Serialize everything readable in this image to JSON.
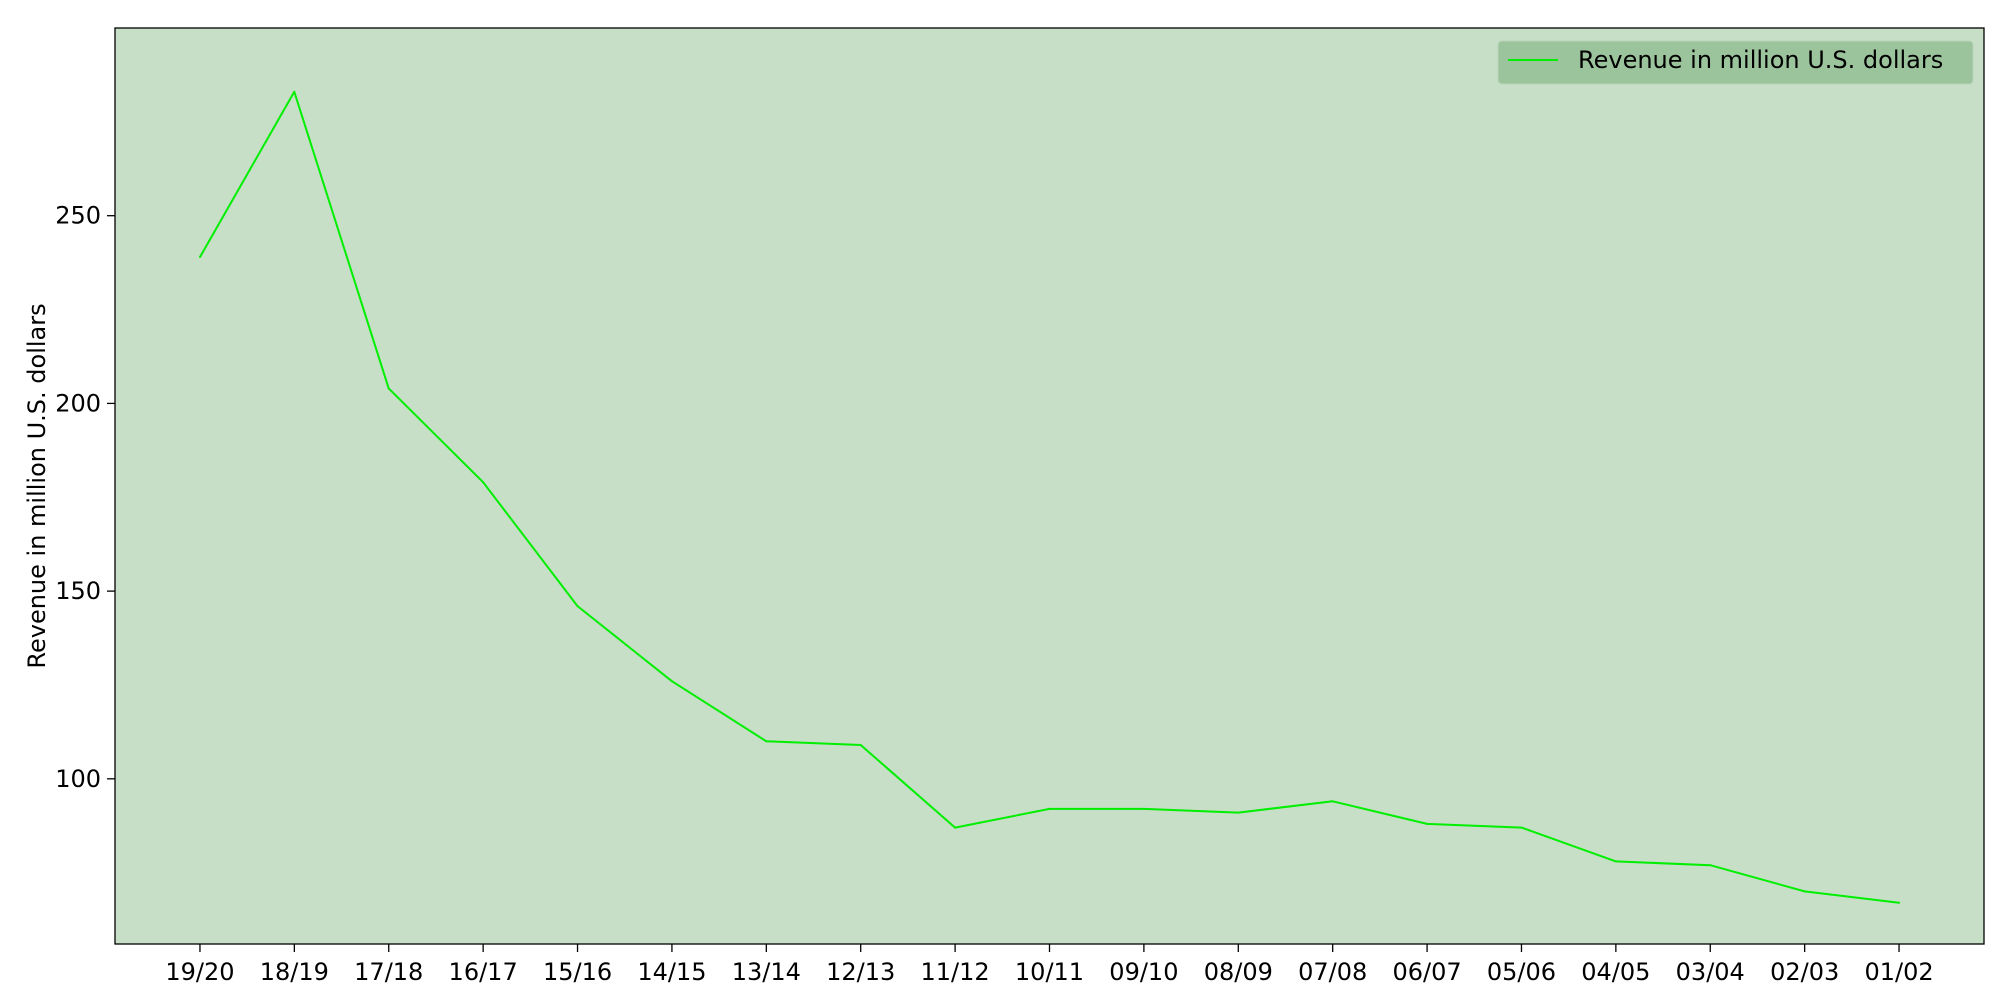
{
  "chart_data": {
    "type": "line",
    "title": "",
    "xlabel": "",
    "ylabel": "Revenue in million U.S. dollars",
    "categories": [
      "19/20",
      "18/19",
      "17/18",
      "16/17",
      "15/16",
      "14/15",
      "13/14",
      "12/13",
      "11/12",
      "10/11",
      "09/10",
      "08/09",
      "07/08",
      "06/07",
      "05/06",
      "04/05",
      "03/04",
      "02/03",
      "01/02"
    ],
    "series": [
      {
        "name": "Revenue in million U.S. dollars",
        "values": [
          239,
          283,
          204,
          179,
          146,
          126,
          110,
          109,
          87,
          92,
          92,
          91,
          94,
          88,
          87,
          78,
          77,
          70,
          67
        ]
      }
    ],
    "ylim": [
      56,
      300
    ],
    "yticks": [
      100,
      150,
      200,
      250
    ],
    "grid": false,
    "legend_position": "top-right",
    "colors": {
      "line": "#00ee00",
      "plot_background": "#c6dfc6",
      "legend_background": "#9cc49c",
      "axis": "#000000"
    }
  }
}
